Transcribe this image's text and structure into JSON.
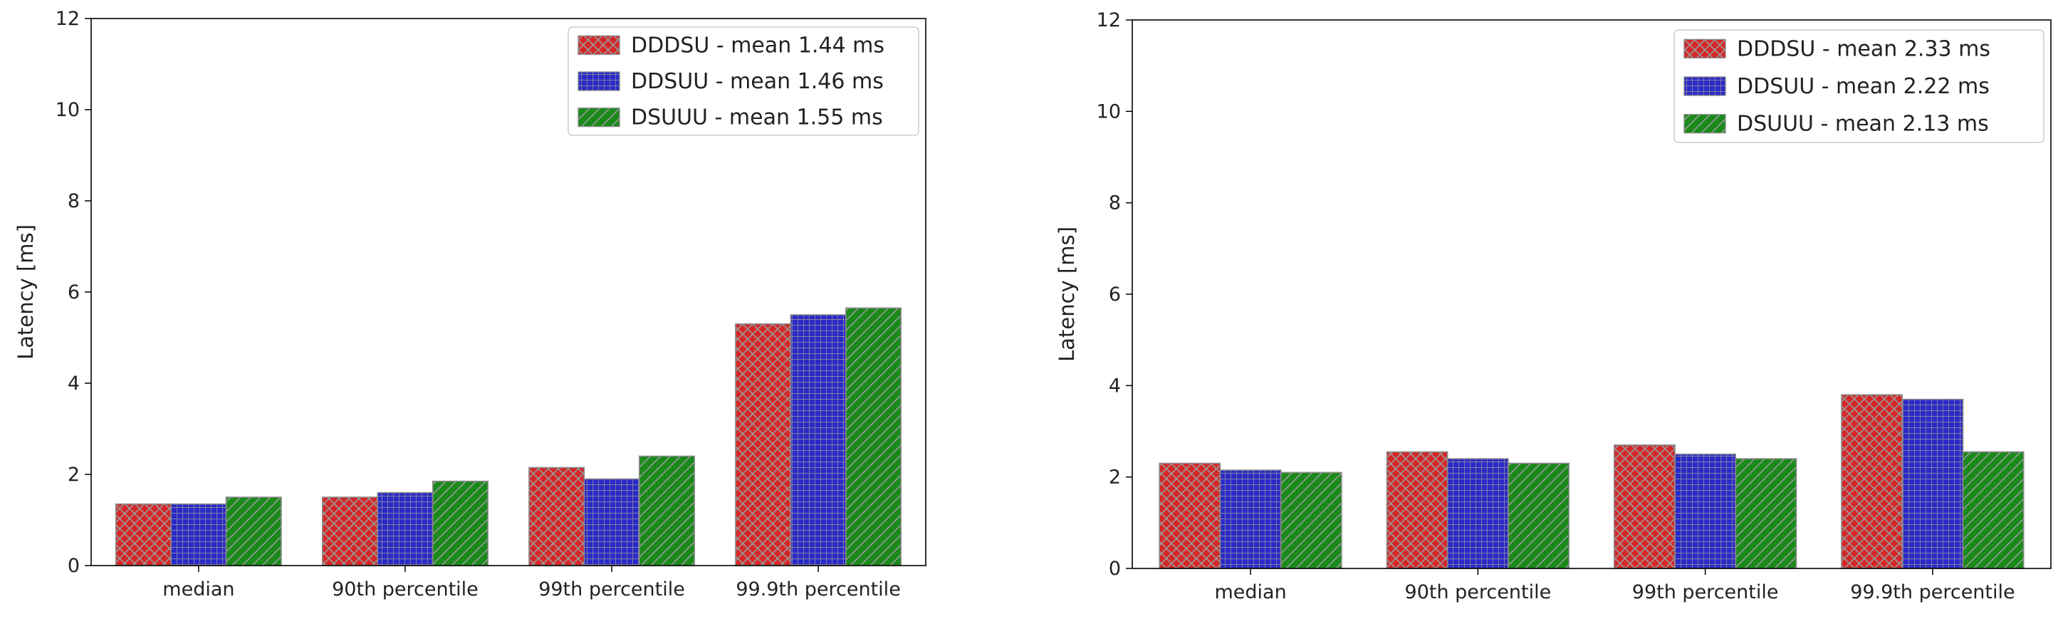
{
  "chart_data": [
    {
      "type": "bar",
      "title": "",
      "xlabel": "",
      "ylabel": "Latency [ms]",
      "ylim": [
        0,
        12
      ],
      "yticks": [
        0,
        2,
        4,
        6,
        8,
        10,
        12
      ],
      "grid": false,
      "legend_position": "top-right",
      "categories": [
        "median",
        "90th percentile",
        "99th percentile",
        "99.9th percentile"
      ],
      "series": [
        {
          "name": "DDDSU - mean 1.44 ms",
          "color": "#d62728",
          "pattern": "crosshatch",
          "values": [
            1.35,
            1.5,
            2.15,
            5.3
          ]
        },
        {
          "name": "DDSUU - mean 1.46 ms",
          "color": "#2a2ac8",
          "pattern": "grid",
          "values": [
            1.35,
            1.6,
            1.9,
            5.5
          ]
        },
        {
          "name": "DSUUU - mean 1.55 ms",
          "color": "#1a8a1a",
          "pattern": "diagonal",
          "values": [
            1.5,
            1.85,
            2.4,
            5.65
          ]
        }
      ]
    },
    {
      "type": "bar",
      "title": "",
      "xlabel": "",
      "ylabel": "Latency [ms]",
      "ylim": [
        0,
        12
      ],
      "yticks": [
        0,
        2,
        4,
        6,
        8,
        10,
        12
      ],
      "grid": false,
      "legend_position": "top-right",
      "categories": [
        "median",
        "90th percentile",
        "99th percentile",
        "99.9th percentile"
      ],
      "series": [
        {
          "name": "DDDSU - mean 2.33 ms",
          "color": "#d62728",
          "pattern": "crosshatch",
          "values": [
            2.3,
            2.55,
            2.7,
            3.8
          ]
        },
        {
          "name": "DDSUU - mean 2.22 ms",
          "color": "#2a2ac8",
          "pattern": "grid",
          "values": [
            2.15,
            2.4,
            2.5,
            3.7
          ]
        },
        {
          "name": "DSUUU - mean 2.13 ms",
          "color": "#1a8a1a",
          "pattern": "diagonal",
          "values": [
            2.1,
            2.3,
            2.4,
            2.55
          ]
        }
      ]
    }
  ]
}
